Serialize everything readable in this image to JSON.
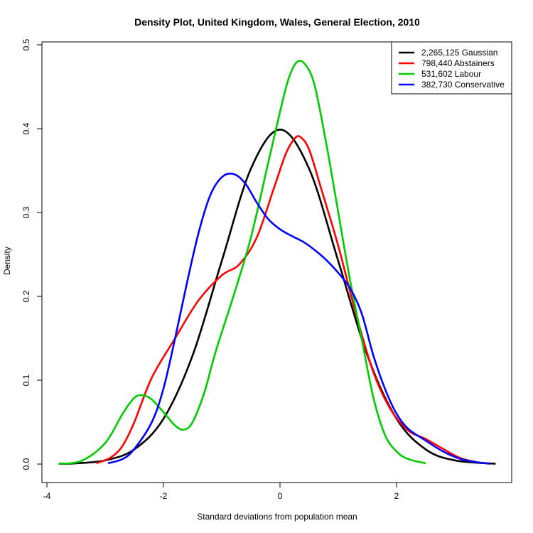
{
  "chart_data": {
    "type": "line",
    "title": "Density Plot, United Kingdom, Wales, General Election, 2010",
    "xlabel": "Standard deviations from population mean",
    "ylabel": "Density",
    "xlim": [
      -4,
      4
    ],
    "ylim": [
      0,
      0.5
    ],
    "xticks": [
      -4,
      -2,
      0,
      2
    ],
    "yticks": [
      0.0,
      0.1,
      0.2,
      0.3,
      0.4,
      0.5
    ],
    "ytick_labels": [
      "0.0",
      "0.1",
      "0.2",
      "0.3",
      "0.4",
      "0.5"
    ],
    "grid": false,
    "legend_position": "top-right",
    "series": [
      {
        "name": "2,265,125 Gaussian",
        "color": "#000000",
        "points": [
          [
            -3.8,
            0.0003
          ],
          [
            -3.5,
            0.0009
          ],
          [
            -3.0,
            0.0044
          ],
          [
            -2.5,
            0.0175
          ],
          [
            -2.0,
            0.054
          ],
          [
            -1.5,
            0.1295
          ],
          [
            -1.0,
            0.242
          ],
          [
            -0.5,
            0.3521
          ],
          [
            0.0,
            0.3989
          ],
          [
            0.5,
            0.3521
          ],
          [
            1.0,
            0.242
          ],
          [
            1.5,
            0.1295
          ],
          [
            2.0,
            0.054
          ],
          [
            2.5,
            0.0175
          ],
          [
            3.0,
            0.0044
          ],
          [
            3.7,
            0.0004
          ]
        ]
      },
      {
        "name": "798,440 Abstainers",
        "color": "#ff0000",
        "points": [
          [
            -3.15,
            0.001
          ],
          [
            -2.9,
            0.008
          ],
          [
            -2.7,
            0.022
          ],
          [
            -2.5,
            0.05
          ],
          [
            -2.2,
            0.103
          ],
          [
            -1.8,
            0.15
          ],
          [
            -1.4,
            0.195
          ],
          [
            -1.0,
            0.225
          ],
          [
            -0.7,
            0.238
          ],
          [
            -0.4,
            0.27
          ],
          [
            -0.1,
            0.33
          ],
          [
            0.1,
            0.37
          ],
          [
            0.25,
            0.388
          ],
          [
            0.35,
            0.39
          ],
          [
            0.5,
            0.375
          ],
          [
            0.7,
            0.33
          ],
          [
            1.0,
            0.26
          ],
          [
            1.3,
            0.18
          ],
          [
            1.6,
            0.11
          ],
          [
            1.9,
            0.065
          ],
          [
            2.2,
            0.04
          ],
          [
            2.5,
            0.03
          ],
          [
            2.8,
            0.018
          ],
          [
            3.1,
            0.007
          ],
          [
            3.4,
            0.002
          ],
          [
            3.6,
            0.0005
          ]
        ]
      },
      {
        "name": "531,602 Labour",
        "color": "#00cc00",
        "points": [
          [
            -3.8,
            0.0003
          ],
          [
            -3.4,
            0.004
          ],
          [
            -3.0,
            0.025
          ],
          [
            -2.7,
            0.06
          ],
          [
            -2.5,
            0.079
          ],
          [
            -2.35,
            0.082
          ],
          [
            -2.2,
            0.077
          ],
          [
            -2.0,
            0.062
          ],
          [
            -1.8,
            0.046
          ],
          [
            -1.65,
            0.041
          ],
          [
            -1.5,
            0.05
          ],
          [
            -1.3,
            0.085
          ],
          [
            -1.1,
            0.135
          ],
          [
            -0.8,
            0.2
          ],
          [
            -0.5,
            0.27
          ],
          [
            -0.2,
            0.36
          ],
          [
            0.0,
            0.42
          ],
          [
            0.15,
            0.46
          ],
          [
            0.3,
            0.48
          ],
          [
            0.45,
            0.475
          ],
          [
            0.6,
            0.45
          ],
          [
            0.8,
            0.38
          ],
          [
            1.0,
            0.3
          ],
          [
            1.2,
            0.22
          ],
          [
            1.4,
            0.15
          ],
          [
            1.6,
            0.08
          ],
          [
            1.8,
            0.035
          ],
          [
            2.0,
            0.015
          ],
          [
            2.2,
            0.006
          ],
          [
            2.5,
            0.001
          ]
        ]
      },
      {
        "name": "382,730 Conservative",
        "color": "#0000ff",
        "points": [
          [
            -2.95,
            0.001
          ],
          [
            -2.7,
            0.006
          ],
          [
            -2.5,
            0.018
          ],
          [
            -2.2,
            0.05
          ],
          [
            -2.0,
            0.09
          ],
          [
            -1.8,
            0.15
          ],
          [
            -1.6,
            0.215
          ],
          [
            -1.4,
            0.275
          ],
          [
            -1.2,
            0.32
          ],
          [
            -1.0,
            0.342
          ],
          [
            -0.8,
            0.346
          ],
          [
            -0.6,
            0.335
          ],
          [
            -0.4,
            0.312
          ],
          [
            -0.2,
            0.292
          ],
          [
            0.0,
            0.28
          ],
          [
            0.2,
            0.272
          ],
          [
            0.4,
            0.265
          ],
          [
            0.6,
            0.255
          ],
          [
            0.8,
            0.243
          ],
          [
            1.0,
            0.228
          ],
          [
            1.2,
            0.21
          ],
          [
            1.4,
            0.18
          ],
          [
            1.6,
            0.13
          ],
          [
            1.8,
            0.09
          ],
          [
            2.0,
            0.06
          ],
          [
            2.2,
            0.042
          ],
          [
            2.5,
            0.028
          ],
          [
            2.8,
            0.015
          ],
          [
            3.1,
            0.006
          ],
          [
            3.4,
            0.002
          ],
          [
            3.6,
            0.0005
          ]
        ]
      }
    ]
  }
}
